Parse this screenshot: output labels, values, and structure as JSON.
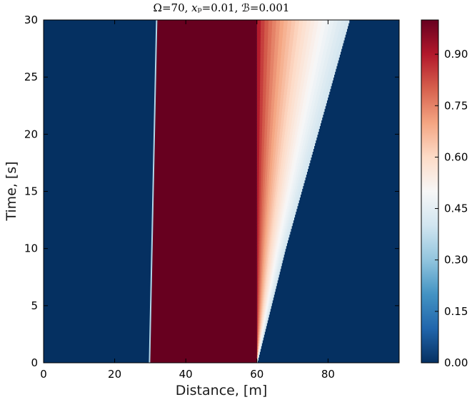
{
  "chart_data": {
    "type": "heatmap",
    "title": "Ω=70, 𝑥ₚ=0.01, ℬ=0.001",
    "xlabel": "Distance, [m]",
    "ylabel": "Time, [s]",
    "xlim": [
      0,
      100
    ],
    "ylim": [
      0,
      30
    ],
    "x_ticks": [
      0,
      20,
      40,
      60,
      80
    ],
    "y_ticks": [
      0,
      5,
      10,
      15,
      20,
      25,
      30
    ],
    "colorbar": {
      "vmin": 0.0,
      "vmax": 1.0,
      "ticks": [
        "0.00",
        "0.15",
        "0.30",
        "0.45",
        "0.60",
        "0.75",
        "0.90"
      ],
      "colormap": "RdBu_r"
    },
    "field": {
      "background_value": 0.0,
      "band": {
        "left_edge_x": [
          30,
          32
        ],
        "right_edge_x": [
          60,
          60
        ],
        "value": 1.0
      },
      "front": {
        "x_at_time": [
          [
            0,
            60
          ],
          [
            10,
            68
          ],
          [
            20,
            77
          ],
          [
            30,
            86
          ]
        ],
        "value_at_band": 0.95,
        "value_at_front": 0.4
      }
    }
  }
}
